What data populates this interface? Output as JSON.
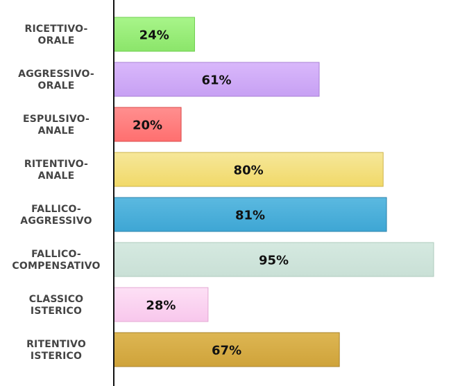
{
  "chart_data": {
    "type": "bar",
    "orientation": "horizontal",
    "categories": [
      [
        "RICETTIVO-",
        "ORALE"
      ],
      [
        "AGGRESSIVO-",
        "ORALE"
      ],
      [
        "ESPULSIVO-",
        "ANALE"
      ],
      [
        "RITENTIVO-",
        "ANALE"
      ],
      [
        "FALLICO-",
        "AGGRESSIVO"
      ],
      [
        "FALLICO-",
        "COMPENSATIVO"
      ],
      [
        "CLASSICO",
        "ISTERICO"
      ],
      [
        "RITENTIVO",
        "ISTERICO"
      ]
    ],
    "values": [
      24,
      61,
      20,
      80,
      81,
      95,
      28,
      67
    ],
    "value_labels": [
      "24%",
      "61%",
      "20%",
      "80%",
      "81%",
      "95%",
      "28%",
      "67%"
    ],
    "colors": [
      [
        "#a8f58a",
        "#8be56a",
        "#6fcf4f"
      ],
      [
        "#d9b8fb",
        "#c7a0f3",
        "#a980d6"
      ],
      [
        "#ff8f8f",
        "#ff6f6f",
        "#d94a4a"
      ],
      [
        "#f6e79a",
        "#f1d968",
        "#cdb34a"
      ],
      [
        "#5bb9e0",
        "#3ea6d4",
        "#2d83ab"
      ],
      [
        "#d5e9e0",
        "#c9e0d6",
        "#aecbbd"
      ],
      [
        "#fde0f5",
        "#f8c7ec",
        "#e3a8d3"
      ],
      [
        "#ddb653",
        "#cfa33a",
        "#a8822a"
      ]
    ],
    "xlim": [
      0,
      100
    ],
    "grid": false,
    "legend": "none",
    "title": "",
    "xlabel": "",
    "ylabel": ""
  }
}
